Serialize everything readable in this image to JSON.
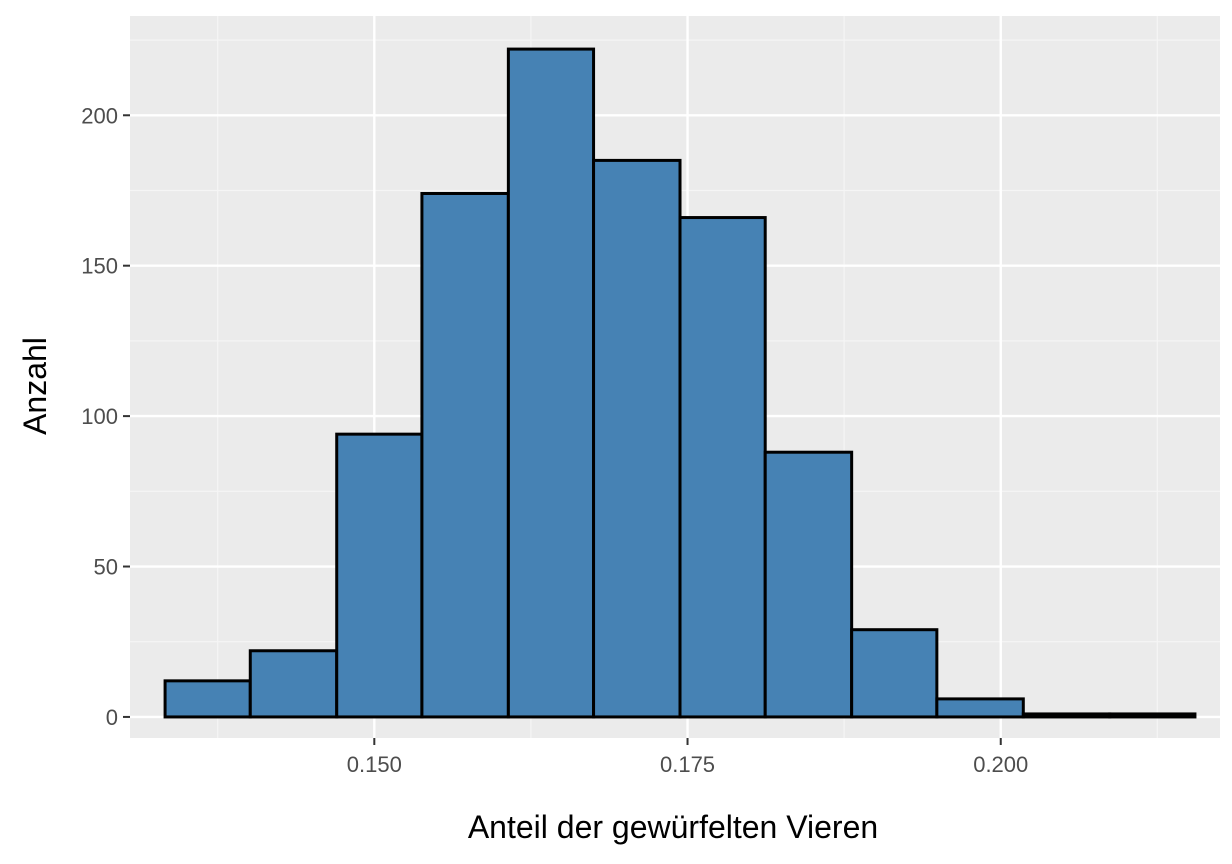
{
  "chart_data": {
    "type": "bar",
    "subtype": "histogram",
    "title": "",
    "xlabel": "Anteil der gewürfelten Vieren",
    "ylabel": "Anzahl",
    "xlim": [
      0.1305,
      0.2175
    ],
    "ylim": [
      -7,
      233
    ],
    "x_ticks": [
      0.15,
      0.175,
      0.2
    ],
    "x_tick_labels": [
      "0.150",
      "0.175",
      "0.200"
    ],
    "y_ticks": [
      0,
      50,
      100,
      150,
      200
    ],
    "y_tick_labels": [
      "0",
      "50",
      "100",
      "150",
      "200"
    ],
    "grid": true,
    "legend": "none",
    "bin_width": 0.00685,
    "bins": [
      {
        "x0": 0.1333,
        "x1": 0.1401,
        "count": 12
      },
      {
        "x0": 0.1401,
        "x1": 0.147,
        "count": 22
      },
      {
        "x0": 0.147,
        "x1": 0.1538,
        "count": 94
      },
      {
        "x0": 0.1538,
        "x1": 0.1607,
        "count": 174
      },
      {
        "x0": 0.1607,
        "x1": 0.1675,
        "count": 222
      },
      {
        "x0": 0.1675,
        "x1": 0.1744,
        "count": 185
      },
      {
        "x0": 0.1744,
        "x1": 0.1812,
        "count": 166
      },
      {
        "x0": 0.1812,
        "x1": 0.1881,
        "count": 88
      },
      {
        "x0": 0.1881,
        "x1": 0.1949,
        "count": 29
      },
      {
        "x0": 0.1949,
        "x1": 0.2018,
        "count": 6
      },
      {
        "x0": 0.2018,
        "x1": 0.2087,
        "count": 1
      },
      {
        "x0": 0.2087,
        "x1": 0.2155,
        "count": 1
      }
    ],
    "colors": {
      "panel_background": "#ebebeb",
      "grid_major": "#ffffff",
      "grid_minor": "#f5f5f5",
      "bar_fill": "#4682b4",
      "bar_outline": "#000000",
      "tick_label": "#4d4d4d",
      "tick_mark": "#333333",
      "axis_title": "#000000"
    }
  }
}
